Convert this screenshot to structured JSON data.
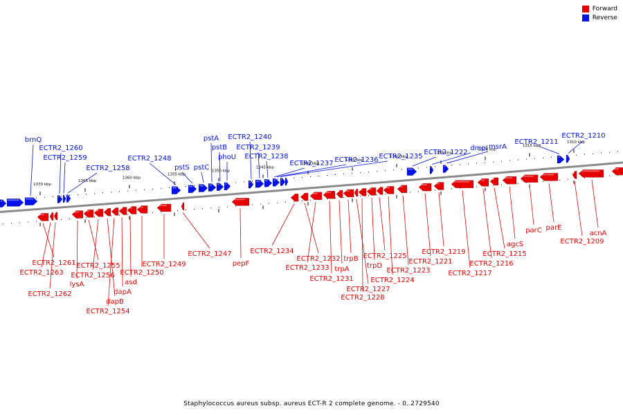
{
  "legend": {
    "forward_label": "Forward",
    "reverse_label": "Reverse",
    "forward_color": "#e60000",
    "reverse_color": "#0010e6"
  },
  "caption": "Staphylococcus aureus subsp. aureus ECT-R 2 complete genome. - 0..2729540",
  "scale_ticks": [
    {
      "label": "1370 kbp"
    },
    {
      "label": "1365 kbp"
    },
    {
      "label": "1360 kbp"
    },
    {
      "label": "1355 kbp"
    },
    {
      "label": "1350 kbp"
    },
    {
      "label": "1345 kbp"
    },
    {
      "label": "1340 kbp"
    },
    {
      "label": "1335 kbp"
    },
    {
      "label": "1330 kbp"
    },
    {
      "label": "1325 kbp"
    },
    {
      "label": "1320 kbp"
    },
    {
      "label": "1315 kbp"
    },
    {
      "label": "1310 kbp"
    }
  ],
  "reverse_genes": [
    {
      "label": "brnQ"
    },
    {
      "label": "ECTR2_1260"
    },
    {
      "label": "ECTR2_1259"
    },
    {
      "label": "ECTR2_1258"
    },
    {
      "label": "ECTR2_1248"
    },
    {
      "label": "pstS"
    },
    {
      "label": "pstC"
    },
    {
      "label": "pstA"
    },
    {
      "label": "pstB"
    },
    {
      "label": "phoU"
    },
    {
      "label": "ECTR2_1240"
    },
    {
      "label": "ECTR2_1239"
    },
    {
      "label": "ECTR2_1238"
    },
    {
      "label": "ECTR2_1237"
    },
    {
      "label": "ECTR2_1236"
    },
    {
      "label": "ECTR2_1235"
    },
    {
      "label": "ECTR2_1222"
    },
    {
      "label": "dmpI"
    },
    {
      "label": "msrA"
    },
    {
      "label": "ECTR2_1211"
    },
    {
      "label": "ECTR2_1210"
    }
  ],
  "forward_genes": [
    {
      "label": "ECTR2_1261"
    },
    {
      "label": "ECTR2_1263"
    },
    {
      "label": "ECTR2_1262"
    },
    {
      "label": "lysA"
    },
    {
      "label": "ECTR2_1255"
    },
    {
      "label": "ECTR2_1256"
    },
    {
      "label": "dapB"
    },
    {
      "label": "ECTR2_1254"
    },
    {
      "label": "dapA"
    },
    {
      "label": "asd"
    },
    {
      "label": "ECTR2_1250"
    },
    {
      "label": "ECTR2_1249"
    },
    {
      "label": "ECTR2_1247"
    },
    {
      "label": "pepF"
    },
    {
      "label": "ECTR2_1234"
    },
    {
      "label": "ECTR2_1232"
    },
    {
      "label": "ECTR2_1233"
    },
    {
      "label": "ECTR2_1231"
    },
    {
      "label": "trpA"
    },
    {
      "label": "trpB"
    },
    {
      "label": "ECTR2_1227"
    },
    {
      "label": "ECTR2_1228"
    },
    {
      "label": "trpD"
    },
    {
      "label": "ECTR2_1225"
    },
    {
      "label": "ECTR2_1224"
    },
    {
      "label": "ECTR2_1223"
    },
    {
      "label": "ECTR2_1221"
    },
    {
      "label": "ECTR2_1219"
    },
    {
      "label": "ECTR2_1217"
    },
    {
      "label": "ECTR2_1216"
    },
    {
      "label": "ECTR2_1215"
    },
    {
      "label": "agcS"
    },
    {
      "label": "parC"
    },
    {
      "label": "parE"
    },
    {
      "label": "ECTR2_1209"
    },
    {
      "label": "acnA"
    }
  ]
}
